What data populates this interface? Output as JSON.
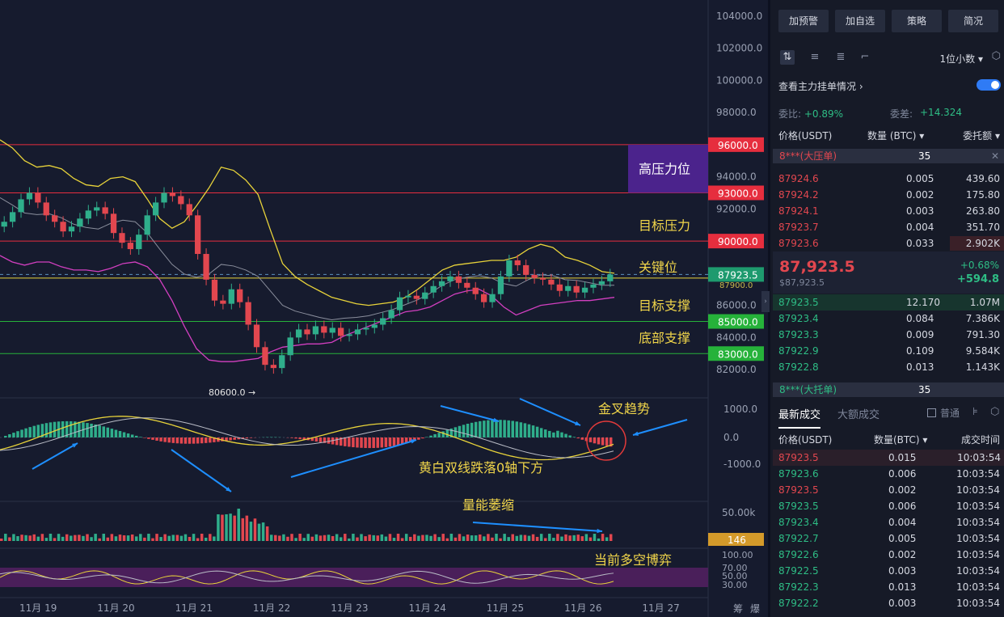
{
  "chart_data": {
    "type": "candlestick",
    "x_ticks": [
      "11月 19",
      "11月 20",
      "11月 21",
      "11月 22",
      "11月 23",
      "11月 24",
      "11月 25",
      "11月 26",
      "11月 27"
    ],
    "price_ticks": [
      "104000.0",
      "102000.0",
      "100000.0",
      "98000.0",
      "94000.0",
      "92000.0",
      "86000.0",
      "84000.0",
      "82000.0"
    ],
    "price_range": [
      81000,
      105000
    ],
    "price_levels": [
      {
        "value": 96000,
        "label": "96000.0",
        "color": "#e62e3e"
      },
      {
        "value": 93000,
        "label": "93000.0",
        "color": "#e62e3e"
      },
      {
        "value": 90000,
        "label": "90000.0",
        "color": "#e62e3e"
      },
      {
        "value": 87923.5,
        "label": "87923.5",
        "color": "#1e9a6e"
      },
      {
        "value": 85000,
        "label": "85000.0",
        "color": "#26b23a"
      },
      {
        "value": 83000,
        "label": "83000.0",
        "color": "#26b23a"
      }
    ],
    "current_price_hidden": "87900.0",
    "close": [
      91200,
      91800,
      92600,
      93000,
      92400,
      91600,
      91200,
      90600,
      90900,
      91400,
      91900,
      92100,
      91700,
      90500,
      89900,
      89500,
      90400,
      91600,
      92400,
      93000,
      92800,
      92300,
      91600,
      89200,
      87600,
      86300,
      86100,
      87000,
      86200,
      84800,
      83400,
      82300,
      82100,
      82900,
      84000,
      84500,
      84200,
      84700,
      84300,
      84600,
      84100,
      84200,
      84500,
      84600,
      84800,
      85200,
      85700,
      86500,
      86600,
      86400,
      86800,
      87200,
      87500,
      87800,
      87400,
      87100,
      86700,
      86200,
      86700,
      87800,
      88800,
      88500,
      87900,
      87700,
      87600,
      87300,
      86900,
      87200,
      86800,
      87100,
      87300,
      87500,
      87923.5
    ],
    "bb_upper": [
      96300,
      95800,
      95000,
      94600,
      94700,
      94500,
      93900,
      93500,
      93400,
      93900,
      94000,
      93700,
      92600,
      91400,
      90800,
      91200,
      92200,
      93300,
      94600,
      94400,
      93800,
      92900,
      90700,
      88600,
      87800,
      87300,
      86900,
      86500,
      86300,
      86100,
      86000,
      86100,
      86200,
      86500,
      87000,
      87600,
      88200,
      88500,
      88600,
      88700,
      88800,
      88800,
      89000,
      89500,
      89800,
      89600,
      89000,
      88800,
      88500,
      88100,
      88000
    ],
    "bb_lower": [
      89100,
      88700,
      88500,
      88700,
      88700,
      88400,
      88200,
      88200,
      88100,
      88300,
      88600,
      88700,
      88400,
      87600,
      86300,
      84700,
      83300,
      82600,
      82500,
      82500,
      82600,
      82700,
      83100,
      83400,
      83500,
      83600,
      83600,
      83700,
      84100,
      84400,
      84700,
      85000,
      85300,
      85600,
      85700,
      85900,
      86300,
      86700,
      86900,
      87000,
      86600,
      85900,
      85400,
      85700,
      86000,
      86100,
      86200,
      86300,
      86300,
      86400,
      86500
    ],
    "indicators": [
      {
        "name": "macd",
        "ticks": [
          "1000.0",
          "0.0",
          "-1000.0"
        ]
      },
      {
        "name": "volume",
        "ticks": [
          "50.00k"
        ],
        "last": "146"
      },
      {
        "name": "rsi",
        "ticks": [
          "100.00",
          "70.00",
          "50.00",
          "30.00"
        ]
      }
    ],
    "low_mark": "80600.0"
  },
  "annotations": {
    "high_resistance": "高压力位",
    "target_resistance": "目标压力",
    "key_level": "关键位",
    "target_support": "目标支撑",
    "bottom_support": "底部支撑",
    "golden_cross": "金叉趋势",
    "macd_note": "黄白双线跌落0轴下方",
    "volume_note": "量能萎缩",
    "rsi_note": "当前多空博弈"
  },
  "footer": {
    "left": "筹",
    "right": "爆"
  },
  "side": {
    "buttons": [
      "加预警",
      "加自选",
      "策略",
      "简况"
    ],
    "decimal": "1位小数",
    "check_orders": "查看主力挂单情况",
    "ratio_label": "委比:",
    "ratio_value": "+0.89%",
    "diff_label": "委差:",
    "diff_value": "+14.324",
    "col_price": "价格(USDT)",
    "col_qty": "数量 (BTC)",
    "col_amount": "委托额",
    "ask_banner": {
      "name": "8***(大压单)",
      "qty": "35"
    },
    "asks": [
      {
        "p": "87924.6",
        "q": "0.005",
        "a": "439.60"
      },
      {
        "p": "87924.2",
        "q": "0.002",
        "a": "175.80"
      },
      {
        "p": "87924.1",
        "q": "0.003",
        "a": "263.80"
      },
      {
        "p": "87923.7",
        "q": "0.004",
        "a": "351.70"
      },
      {
        "p": "87923.6",
        "q": "0.033",
        "a": "2.902K"
      }
    ],
    "last_price": "87,923.5",
    "last_price_usd": "$87,923.5",
    "change_pct": "+0.68%",
    "change_abs": "+594.8",
    "bids": [
      {
        "p": "87923.5",
        "q": "12.170",
        "a": "1.07M"
      },
      {
        "p": "87923.4",
        "q": "0.084",
        "a": "7.386K"
      },
      {
        "p": "87923.3",
        "q": "0.009",
        "a": "791.30"
      },
      {
        "p": "87922.9",
        "q": "0.109",
        "a": "9.584K"
      },
      {
        "p": "87922.8",
        "q": "0.013",
        "a": "1.143K"
      }
    ],
    "bid_banner": {
      "name": "8***(大托单)",
      "qty": "35"
    },
    "tab_latest": "最新成交",
    "tab_large": "大额成交",
    "normal": "普通",
    "trade_col_price": "价格(USDT)",
    "trade_col_qty": "数量(BTC)",
    "trade_col_time": "成交时间",
    "trades": [
      {
        "p": "87923.5",
        "q": "0.015",
        "t": "10:03:54",
        "side": "sell"
      },
      {
        "p": "87923.6",
        "q": "0.006",
        "t": "10:03:54",
        "side": "buy"
      },
      {
        "p": "87923.5",
        "q": "0.002",
        "t": "10:03:54",
        "side": "sell"
      },
      {
        "p": "87923.5",
        "q": "0.006",
        "t": "10:03:54",
        "side": "buy"
      },
      {
        "p": "87923.4",
        "q": "0.004",
        "t": "10:03:54",
        "side": "buy"
      },
      {
        "p": "87922.7",
        "q": "0.005",
        "t": "10:03:54",
        "side": "buy"
      },
      {
        "p": "87922.6",
        "q": "0.002",
        "t": "10:03:54",
        "side": "buy"
      },
      {
        "p": "87922.5",
        "q": "0.003",
        "t": "10:03:54",
        "side": "buy"
      },
      {
        "p": "87922.3",
        "q": "0.013",
        "t": "10:03:54",
        "side": "buy"
      },
      {
        "p": "87922.2",
        "q": "0.003",
        "t": "10:03:54",
        "side": "buy"
      }
    ]
  }
}
